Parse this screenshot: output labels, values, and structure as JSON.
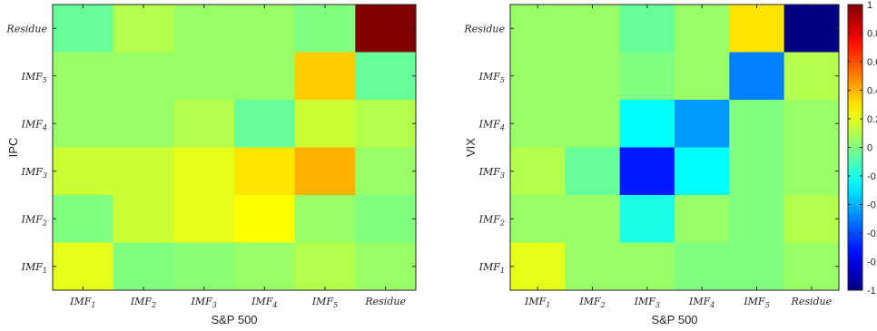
{
  "chart_data": [
    {
      "type": "heatmap",
      "xlabel": "S&P 500",
      "ylabel": "IPC",
      "x_categories": [
        {
          "base": "IMF",
          "sub": "1"
        },
        {
          "base": "IMF",
          "sub": "2"
        },
        {
          "base": "IMF",
          "sub": "3"
        },
        {
          "base": "IMF",
          "sub": "4"
        },
        {
          "base": "IMF",
          "sub": "5"
        },
        {
          "base": "Residue",
          "sub": ""
        }
      ],
      "y_categories": [
        {
          "base": "Residue",
          "sub": ""
        },
        {
          "base": "IMF",
          "sub": "5"
        },
        {
          "base": "IMF",
          "sub": "4"
        },
        {
          "base": "IMF",
          "sub": "3"
        },
        {
          "base": "IMF",
          "sub": "2"
        },
        {
          "base": "IMF",
          "sub": "1"
        }
      ],
      "values": [
        [
          -0.05,
          0.1,
          0.05,
          0.05,
          0.0,
          1.0
        ],
        [
          0.05,
          0.05,
          0.05,
          0.05,
          0.35,
          -0.05
        ],
        [
          0.05,
          0.05,
          0.1,
          -0.05,
          0.15,
          0.1
        ],
        [
          0.15,
          0.15,
          0.2,
          0.3,
          0.4,
          0.05
        ],
        [
          0.0,
          0.15,
          0.2,
          0.25,
          0.05,
          0.0
        ],
        [
          0.2,
          0.0,
          0.02,
          0.05,
          0.1,
          0.05
        ]
      ]
    },
    {
      "type": "heatmap",
      "xlabel": "S&P 500",
      "ylabel": "VIX",
      "x_categories": [
        {
          "base": "IMF",
          "sub": "1"
        },
        {
          "base": "IMF",
          "sub": "2"
        },
        {
          "base": "IMF",
          "sub": "3"
        },
        {
          "base": "IMF",
          "sub": "4"
        },
        {
          "base": "IMF",
          "sub": "5"
        },
        {
          "base": "Residue",
          "sub": ""
        }
      ],
      "y_categories": [
        {
          "base": "Residue",
          "sub": ""
        },
        {
          "base": "IMF",
          "sub": "5"
        },
        {
          "base": "IMF",
          "sub": "4"
        },
        {
          "base": "IMF",
          "sub": "3"
        },
        {
          "base": "IMF",
          "sub": "2"
        },
        {
          "base": "IMF",
          "sub": "1"
        }
      ],
      "values": [
        [
          0.05,
          0.05,
          -0.05,
          0.05,
          0.3,
          -1.0
        ],
        [
          0.05,
          0.05,
          0.0,
          0.05,
          -0.5,
          0.1
        ],
        [
          0.05,
          0.05,
          -0.25,
          -0.45,
          0.0,
          0.05
        ],
        [
          0.1,
          -0.05,
          -0.7,
          -0.25,
          0.0,
          0.05
        ],
        [
          0.05,
          0.05,
          -0.2,
          0.05,
          0.0,
          0.1
        ],
        [
          0.2,
          0.05,
          0.05,
          0.0,
          0.0,
          0.05
        ]
      ]
    }
  ],
  "colorbar": {
    "range": [
      -1,
      1
    ],
    "ticks": [
      "1",
      "0.8",
      "0.6",
      "0.4",
      "0.2",
      "0",
      "-0.2",
      "-0.4",
      "-0.6",
      "-0.8",
      "-1"
    ]
  }
}
